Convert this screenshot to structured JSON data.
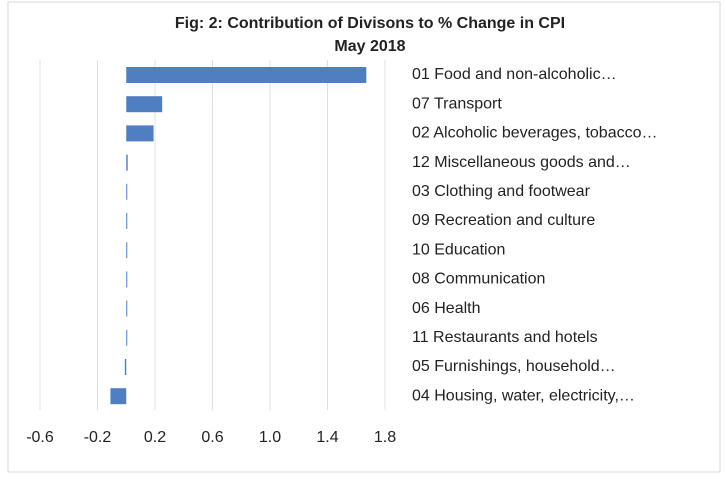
{
  "chart_data": {
    "type": "barh",
    "title": "Fig: 2: Contribution of Divisons to % Change in CPI",
    "subtitle": "May 2018",
    "categories": [
      "01 Food and non-alcoholic…",
      "07 Transport",
      "02 Alcoholic beverages, tobacco…",
      "12 Miscellaneous goods and…",
      "03 Clothing and footwear",
      "09 Recreation and culture",
      "10 Education",
      "08 Communication",
      "06 Health",
      "11 Restaurants and hotels",
      "05 Furnishings, household…",
      "04 Housing, water, electricity,…"
    ],
    "values": [
      1.67,
      0.25,
      0.19,
      0.01,
      0,
      0,
      0,
      0,
      0,
      0,
      -0.01,
      -0.11
    ],
    "color": "#4f7fc0",
    "xlim": [
      -0.6,
      1.8
    ],
    "xticks": [
      -0.6,
      -0.2,
      0.2,
      0.6,
      {
        "value": 1,
        "label": "1.0"
      },
      1.4,
      1.8
    ],
    "grid": true
  }
}
